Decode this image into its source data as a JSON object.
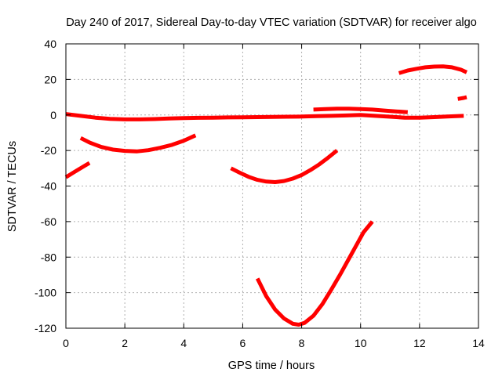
{
  "chart_data": {
    "type": "line",
    "title": "Day 240 of 2017, Sidereal Day-to-day VTEC variation (SDTVAR) for receiver algo",
    "xlabel": "GPS time / hours",
    "ylabel": "SDTVAR / TECUs",
    "xlim": [
      0,
      14
    ],
    "ylim": [
      -120,
      40
    ],
    "xticks": [
      0,
      2,
      4,
      6,
      8,
      10,
      12,
      14
    ],
    "yticks": [
      -120,
      -100,
      -80,
      -60,
      -40,
      -20,
      0,
      20,
      40
    ],
    "xtick_labels": [
      "0",
      "2",
      "4",
      "6",
      "8",
      "10",
      "12",
      "14"
    ],
    "ytick_labels": [
      "-120",
      "-100",
      "-80",
      "-60",
      "-40",
      "-20",
      "0",
      "20",
      "40"
    ],
    "grid": true,
    "legend": "none",
    "series_color": "#ff0000",
    "series": [
      {
        "x": [
          0.0,
          0.3,
          0.6,
          0.8
        ],
        "y": [
          -35,
          -32,
          -29,
          -27
        ]
      },
      {
        "x": [
          0.5,
          0.8,
          1.2,
          1.6,
          2.0,
          2.4,
          2.8,
          3.2,
          3.6,
          4.0,
          4.4
        ],
        "y": [
          -13,
          -15.5,
          -18,
          -19.5,
          -20.2,
          -20.5,
          -19.8,
          -18.5,
          -16.8,
          -14.5,
          -11.5
        ]
      },
      {
        "x": [
          0.0,
          0.5,
          1.0,
          1.5,
          2.0,
          2.5,
          3.0,
          3.5,
          4.0,
          4.5,
          5.0,
          5.5,
          6.0,
          6.5,
          7.0,
          7.5,
          8.0,
          8.5,
          9.0,
          9.5,
          10.0,
          10.5,
          11.0,
          11.5,
          12.0,
          12.5,
          13.0,
          13.5
        ],
        "y": [
          0.5,
          -0.5,
          -1.5,
          -2.2,
          -2.5,
          -2.5,
          -2.3,
          -2,
          -1.8,
          -1.6,
          -1.5,
          -1.4,
          -1.3,
          -1.2,
          -1.1,
          -1,
          -0.9,
          -0.7,
          -0.5,
          -0.3,
          0,
          -0.5,
          -1,
          -1.5,
          -1.5,
          -1.2,
          -0.8,
          -0.5
        ]
      },
      {
        "x": [
          5.6,
          5.9,
          6.2,
          6.5,
          6.8,
          7.1,
          7.4,
          7.7,
          8.0,
          8.3,
          8.6,
          8.9,
          9.2
        ],
        "y": [
          -30,
          -32.5,
          -34.8,
          -36.5,
          -37.5,
          -37.8,
          -37.2,
          -35.8,
          -33.8,
          -31,
          -27.8,
          -24,
          -20
        ]
      },
      {
        "x": [
          6.5,
          6.8,
          7.1,
          7.4,
          7.7,
          7.9,
          8.1,
          8.4,
          8.7,
          9.0,
          9.3,
          9.6,
          9.9,
          10.1,
          10.4
        ],
        "y": [
          -92,
          -102,
          -109.5,
          -114.5,
          -117.5,
          -118,
          -117,
          -113,
          -106.5,
          -98.5,
          -90,
          -81,
          -72,
          -66,
          -60
        ]
      },
      {
        "x": [
          8.4,
          8.8,
          9.2,
          9.6,
          10.0,
          10.4,
          10.8,
          11.2,
          11.6
        ],
        "y": [
          3,
          3.3,
          3.5,
          3.5,
          3.3,
          3,
          2.5,
          2,
          1.5
        ]
      },
      {
        "x": [
          11.3,
          11.6,
          11.9,
          12.2,
          12.5,
          12.8,
          13.1,
          13.4,
          13.6
        ],
        "y": [
          23.5,
          25,
          26,
          26.8,
          27.2,
          27.3,
          26.8,
          25.5,
          24
        ]
      },
      {
        "x": [
          13.3,
          13.5,
          13.6
        ],
        "y": [
          9,
          9.6,
          10
        ]
      }
    ]
  }
}
